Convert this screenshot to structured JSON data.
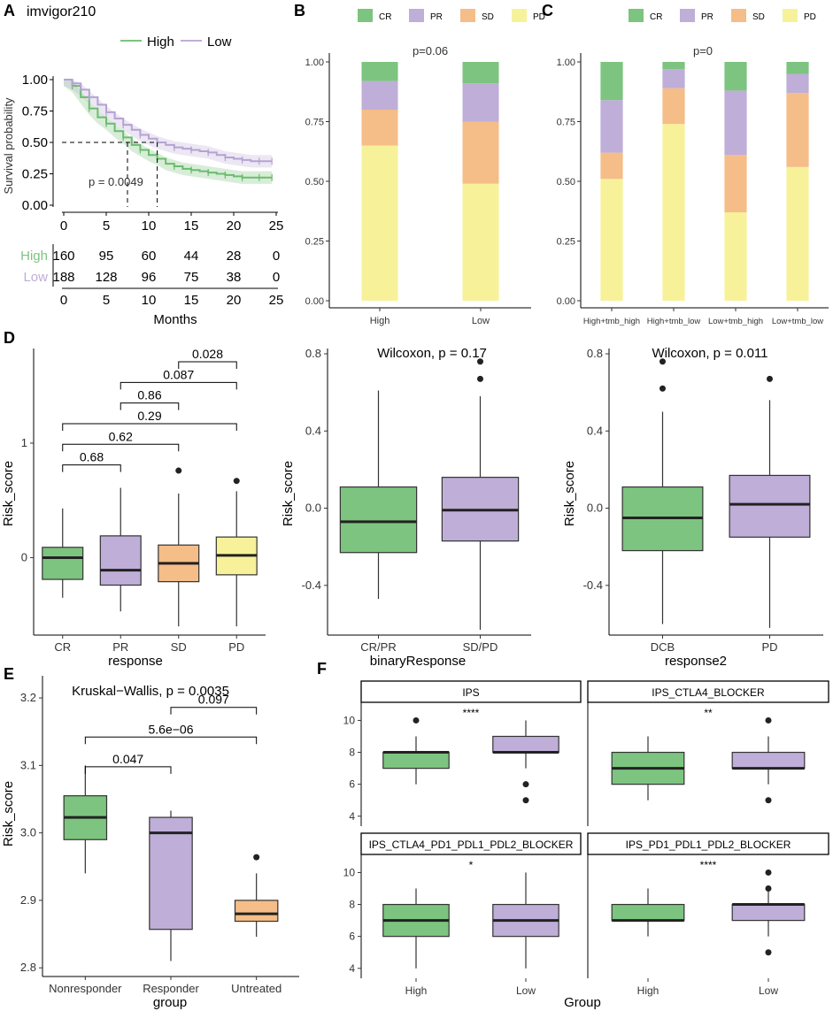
{
  "figure_labels": {
    "A": "A",
    "B": "B",
    "C": "C",
    "D": "D",
    "E": "E",
    "F": "F"
  },
  "colors": {
    "high": "#7cc47f",
    "low": "#bfaed8",
    "cr": "#7cc47f",
    "pr": "#bfaed8",
    "sd": "#f5bd88",
    "pd": "#f7f29a",
    "line": "#000000"
  },
  "chart_data": [
    {
      "id": "A",
      "type": "line",
      "title": "imvigor210",
      "xlabel": "Months",
      "ylabel": "Survival probability",
      "xlim": [
        0,
        25
      ],
      "ylim": [
        0,
        1
      ],
      "x_ticks": [
        "0",
        "5",
        "10",
        "15",
        "20",
        "25"
      ],
      "y_ticks": [
        "0.00",
        "0.25",
        "0.50",
        "0.75",
        "1.00"
      ],
      "legend": [
        "High",
        "Low"
      ],
      "pvalue": "p = 0.0049",
      "median_survival": [
        7.5,
        11.0
      ],
      "series": [
        {
          "name": "High",
          "x": [
            0,
            1,
            2,
            3,
            4,
            5,
            6,
            7,
            8,
            9,
            10,
            11,
            12,
            13,
            14,
            15,
            16,
            17,
            18,
            19,
            20,
            21,
            22,
            23,
            24,
            24.5
          ],
          "y": [
            1.0,
            0.95,
            0.86,
            0.77,
            0.7,
            0.65,
            0.59,
            0.54,
            0.48,
            0.44,
            0.4,
            0.37,
            0.33,
            0.31,
            0.29,
            0.28,
            0.27,
            0.26,
            0.25,
            0.24,
            0.23,
            0.22,
            0.22,
            0.22,
            0.22,
            0.22
          ]
        },
        {
          "name": "Low",
          "x": [
            0,
            1,
            2,
            3,
            4,
            5,
            6,
            7,
            8,
            9,
            10,
            11,
            12,
            13,
            14,
            15,
            16,
            17,
            18,
            19,
            20,
            21,
            22,
            23,
            24,
            24.5
          ],
          "y": [
            1.0,
            0.97,
            0.92,
            0.86,
            0.8,
            0.74,
            0.69,
            0.64,
            0.6,
            0.56,
            0.53,
            0.5,
            0.48,
            0.46,
            0.45,
            0.44,
            0.43,
            0.42,
            0.4,
            0.38,
            0.37,
            0.36,
            0.35,
            0.35,
            0.35,
            0.35
          ]
        }
      ],
      "risk_table": {
        "x_ticks": [
          "0",
          "5",
          "10",
          "15",
          "20",
          "25"
        ],
        "rows": [
          {
            "name": "High",
            "counts": [
              "160",
              "95",
              "60",
              "44",
              "28",
              "0"
            ]
          },
          {
            "name": "Low",
            "counts": [
              "188",
              "128",
              "96",
              "75",
              "38",
              "0"
            ]
          }
        ]
      }
    },
    {
      "id": "B",
      "type": "bar",
      "stacked": true,
      "categories": [
        "High",
        "Low"
      ],
      "legend": [
        "CR",
        "PR",
        "SD",
        "PD"
      ],
      "series": [
        {
          "name": "PD",
          "values": [
            0.65,
            0.49
          ]
        },
        {
          "name": "SD",
          "values": [
            0.15,
            0.26
          ]
        },
        {
          "name": "PR",
          "values": [
            0.12,
            0.16
          ]
        },
        {
          "name": "CR",
          "values": [
            0.08,
            0.09
          ]
        }
      ],
      "y_ticks": [
        "0.00",
        "0.25",
        "0.50",
        "0.75",
        "1.00"
      ],
      "ylim": [
        0,
        1
      ],
      "pvalue": "p=0.06"
    },
    {
      "id": "C",
      "type": "bar",
      "stacked": true,
      "categories": [
        "High+tmb_high",
        "High+tmb_low",
        "Low+tmb_high",
        "Low+tmb_low"
      ],
      "legend": [
        "CR",
        "PR",
        "SD",
        "PD"
      ],
      "series": [
        {
          "name": "PD",
          "values": [
            0.51,
            0.74,
            0.37,
            0.56
          ]
        },
        {
          "name": "SD",
          "values": [
            0.11,
            0.15,
            0.24,
            0.31
          ]
        },
        {
          "name": "PR",
          "values": [
            0.22,
            0.08,
            0.27,
            0.08
          ]
        },
        {
          "name": "CR",
          "values": [
            0.16,
            0.03,
            0.12,
            0.05
          ]
        }
      ],
      "y_ticks": [
        "0.00",
        "0.25",
        "0.50",
        "0.75",
        "1.00"
      ],
      "ylim": [
        0,
        1
      ],
      "pvalue": "p=0"
    },
    {
      "id": "D1",
      "type": "box",
      "xlabel": "response",
      "ylabel": "Risk_score",
      "categories": [
        "CR",
        "PR",
        "SD",
        "PD"
      ],
      "ylim": [
        -0.63,
        1.78
      ],
      "y_ticks": [
        0,
        1
      ],
      "y_tick_labels": [
        "0",
        "1"
      ],
      "boxes": [
        {
          "name": "CR",
          "q1": -0.19,
          "median": 0.0,
          "q3": 0.09,
          "min": -0.35,
          "max": 0.43,
          "outliers": []
        },
        {
          "name": "PR",
          "q1": -0.24,
          "median": -0.11,
          "q3": 0.19,
          "min": -0.47,
          "max": 0.61,
          "outliers": []
        },
        {
          "name": "SD",
          "q1": -0.21,
          "median": -0.05,
          "q3": 0.11,
          "min": -0.6,
          "max": 0.56,
          "outliers": [
            0.76
          ]
        },
        {
          "name": "PD",
          "q1": -0.15,
          "median": 0.02,
          "q3": 0.18,
          "min": -0.6,
          "max": 0.58,
          "outliers": [
            0.67
          ]
        }
      ],
      "comparisons": [
        {
          "from": 0,
          "to": 1,
          "y": 0.81,
          "label": "0.68"
        },
        {
          "from": 0,
          "to": 2,
          "y": 0.99,
          "label": "0.62"
        },
        {
          "from": 0,
          "to": 3,
          "y": 1.17,
          "label": "0.29"
        },
        {
          "from": 1,
          "to": 2,
          "y": 1.35,
          "label": "0.86"
        },
        {
          "from": 1,
          "to": 3,
          "y": 1.53,
          "label": "0.087"
        },
        {
          "from": 2,
          "to": 3,
          "y": 1.71,
          "label": "0.028"
        }
      ]
    },
    {
      "id": "D2",
      "type": "box",
      "xlabel": "binaryResponse",
      "ylabel": "Risk_score",
      "categories": [
        "CR/PR",
        "SD/PD"
      ],
      "ylim": [
        -0.63,
        0.8
      ],
      "y_ticks": [
        -0.4,
        0.0,
        0.4,
        0.8
      ],
      "y_tick_labels": [
        "-0.4",
        "0.0",
        "0.4",
        "0.8"
      ],
      "test": "Wilcoxon, p = 0.17",
      "boxes": [
        {
          "name": "CR/PR",
          "q1": -0.23,
          "median": -0.07,
          "q3": 0.11,
          "min": -0.47,
          "max": 0.61,
          "outliers": []
        },
        {
          "name": "SD/PD",
          "q1": -0.17,
          "median": -0.01,
          "q3": 0.16,
          "min": -0.63,
          "max": 0.58,
          "outliers": [
            0.67,
            0.76
          ]
        }
      ]
    },
    {
      "id": "D3",
      "type": "box",
      "xlabel": "response2",
      "ylabel": "Risk_score",
      "categories": [
        "DCB",
        "PD"
      ],
      "ylim": [
        -0.63,
        0.8
      ],
      "y_ticks": [
        -0.4,
        0.0,
        0.4,
        0.8
      ],
      "y_tick_labels": [
        "-0.4",
        "0.0",
        "0.4",
        "0.8"
      ],
      "test": "Wilcoxon, p = 0.011",
      "boxes": [
        {
          "name": "DCB",
          "q1": -0.22,
          "median": -0.05,
          "q3": 0.11,
          "min": -0.6,
          "max": 0.5,
          "outliers": [
            0.62,
            0.76
          ]
        },
        {
          "name": "PD",
          "q1": -0.15,
          "median": 0.02,
          "q3": 0.17,
          "min": -0.62,
          "max": 0.56,
          "outliers": [
            0.67
          ]
        }
      ]
    },
    {
      "id": "E",
      "type": "box",
      "xlabel": "group",
      "ylabel": "Risk_score",
      "categories": [
        "Nonresponder",
        "Responder",
        "Untreated"
      ],
      "ylim": [
        2.795,
        3.225
      ],
      "y_ticks": [
        2.8,
        2.9,
        3.0,
        3.1,
        3.2
      ],
      "y_tick_labels": [
        "2.8",
        "2.9",
        "3.0",
        "3.1",
        "3.2"
      ],
      "test": "Kruskal−Wallis, p = 0.0035",
      "boxes": [
        {
          "name": "Nonresponder",
          "q1": 2.99,
          "median": 3.023,
          "q3": 3.055,
          "min": 2.94,
          "max": 3.1,
          "outliers": []
        },
        {
          "name": "Responder",
          "q1": 2.857,
          "median": 3.0,
          "q3": 3.023,
          "min": 2.81,
          "max": 3.033,
          "outliers": []
        },
        {
          "name": "Untreated",
          "q1": 2.869,
          "median": 2.88,
          "q3": 2.9,
          "min": 2.846,
          "max": 2.94,
          "outliers": [
            2.964
          ]
        }
      ],
      "comparisons": [
        {
          "from": 0,
          "to": 1,
          "y": 3.098,
          "label": "0.047"
        },
        {
          "from": 0,
          "to": 2,
          "y": 3.142,
          "label": "5.6e−06"
        },
        {
          "from": 1,
          "to": 2,
          "y": 3.186,
          "label": "0.097"
        }
      ]
    },
    {
      "id": "F",
      "type": "box",
      "xlabel": "Group",
      "ylabel": "",
      "categories": [
        "High",
        "Low"
      ],
      "ylim": [
        3.6,
        10.8
      ],
      "y_ticks": [
        4,
        6,
        8,
        10
      ],
      "y_tick_labels": [
        "4",
        "6",
        "8",
        "10"
      ],
      "facets": [
        {
          "title": "IPS",
          "signif": "****",
          "boxes": [
            {
              "name": "High",
              "q1": 7,
              "median": 8,
              "q3": 8,
              "min": 6,
              "max": 9,
              "outliers": [
                10
              ]
            },
            {
              "name": "Low",
              "q1": 8,
              "median": 8,
              "q3": 9,
              "min": 7,
              "max": 10,
              "outliers": [
                6,
                5
              ]
            }
          ]
        },
        {
          "title": "IPS_CTLA4_BLOCKER",
          "signif": "**",
          "boxes": [
            {
              "name": "High",
              "q1": 6,
              "median": 7,
              "q3": 8,
              "min": 5,
              "max": 9,
              "outliers": []
            },
            {
              "name": "Low",
              "q1": 7,
              "median": 7,
              "q3": 8,
              "min": 6,
              "max": 9,
              "outliers": [
                10,
                5
              ]
            }
          ]
        },
        {
          "title": "IPS_CTLA4_PD1_PDL1_PDL2_BLOCKER",
          "signif": "*",
          "boxes": [
            {
              "name": "High",
              "q1": 6,
              "median": 7,
              "q3": 8,
              "min": 4,
              "max": 9,
              "outliers": []
            },
            {
              "name": "Low",
              "q1": 6,
              "median": 7,
              "q3": 8,
              "min": 4,
              "max": 10,
              "outliers": []
            }
          ]
        },
        {
          "title": "IPS_PD1_PDL1_PDL2_BLOCKER",
          "signif": "****",
          "boxes": [
            {
              "name": "High",
              "q1": 7,
              "median": 7,
              "q3": 8,
              "min": 6,
              "max": 9,
              "outliers": []
            },
            {
              "name": "Low",
              "q1": 7,
              "median": 8,
              "q3": 8,
              "min": 6,
              "max": 9,
              "outliers": [
                10,
                9,
                5
              ]
            }
          ]
        }
      ]
    }
  ]
}
